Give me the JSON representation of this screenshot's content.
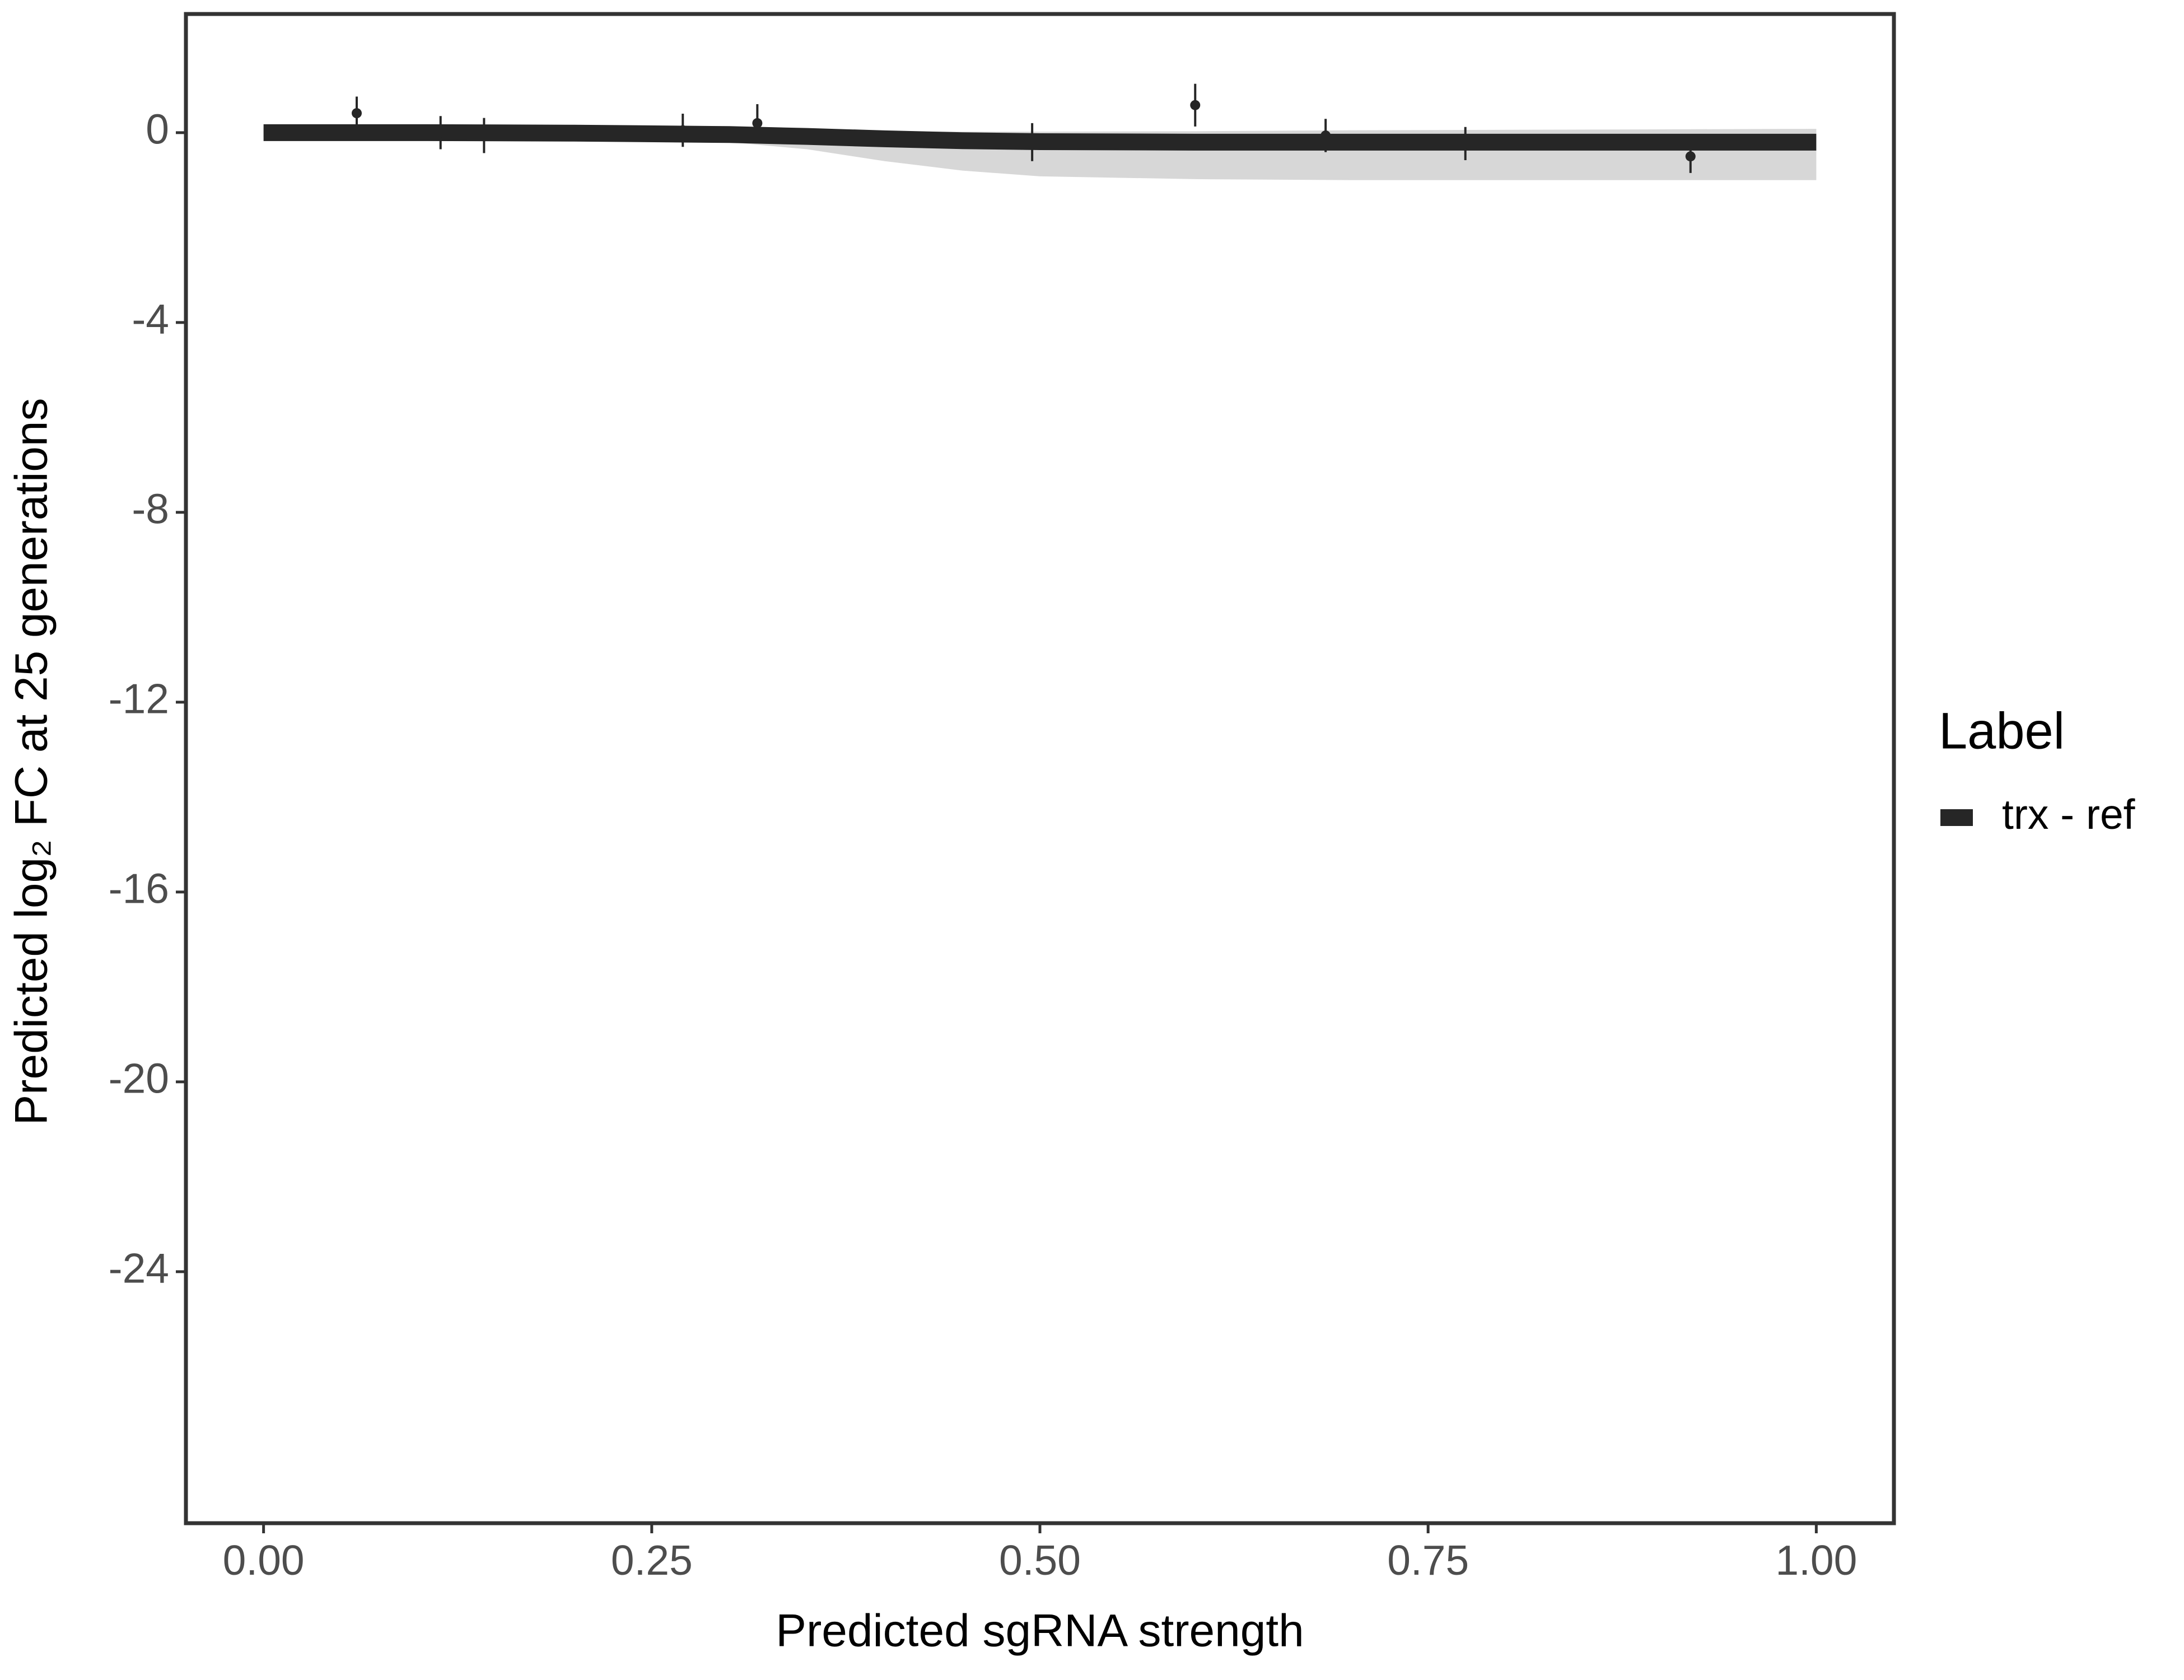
{
  "chart_data": {
    "type": "line",
    "x_label": "Predicted sgRNA strength",
    "y_label": "Predicted  log₂ FC at 25 generations",
    "legend_title": "Label",
    "legend": "right",
    "xlim": [
      -0.05,
      1.05
    ],
    "ylim": [
      -29.3,
      2.5
    ],
    "xticks": [
      {
        "value": 0,
        "label": "0.00"
      },
      {
        "value": 0.25,
        "label": "0.25"
      },
      {
        "value": 0.5,
        "label": "0.50"
      },
      {
        "value": 0.75,
        "label": "0.75"
      },
      {
        "value": 1,
        "label": "1.00"
      }
    ],
    "yticks": [
      0,
      -4,
      -8,
      -12,
      -16,
      -20,
      -24
    ],
    "grid": false,
    "series": [
      {
        "name": "trx - ref",
        "color": "#262626",
        "band_color": "#bdbdbd",
        "x": [
          0,
          0.1,
          0.2,
          0.3,
          0.35,
          0.4,
          0.45,
          0.5,
          0.6,
          0.7,
          0.8,
          0.9,
          1.0
        ],
        "values": [
          0,
          0,
          -0.01,
          -0.04,
          -0.08,
          -0.13,
          -0.17,
          -0.19,
          -0.2,
          -0.2,
          -0.2,
          -0.2,
          -0.2
        ],
        "lower": [
          -0.1,
          -0.1,
          -0.12,
          -0.2,
          -0.35,
          -0.6,
          -0.8,
          -0.92,
          -0.98,
          -1.0,
          -1.0,
          -1.0,
          -1.0
        ],
        "upper": [
          0.1,
          0.1,
          0.09,
          0.07,
          0.05,
          0.03,
          0.02,
          0.02,
          0.03,
          0.05,
          0.06,
          0.07,
          0.08
        ]
      }
    ],
    "points": {
      "color": "#262626",
      "x": [
        0.06,
        0.114,
        0.142,
        0.27,
        0.318,
        0.495,
        0.6,
        0.684,
        0.774,
        0.919
      ],
      "values": [
        0.41,
        0.0,
        -0.06,
        0.05,
        0.2,
        -0.2,
        0.58,
        -0.06,
        -0.23,
        -0.5
      ],
      "errors": [
        0.35,
        0.35,
        0.37,
        0.35,
        0.4,
        0.4,
        0.45,
        0.35,
        0.35,
        0.35
      ]
    }
  }
}
